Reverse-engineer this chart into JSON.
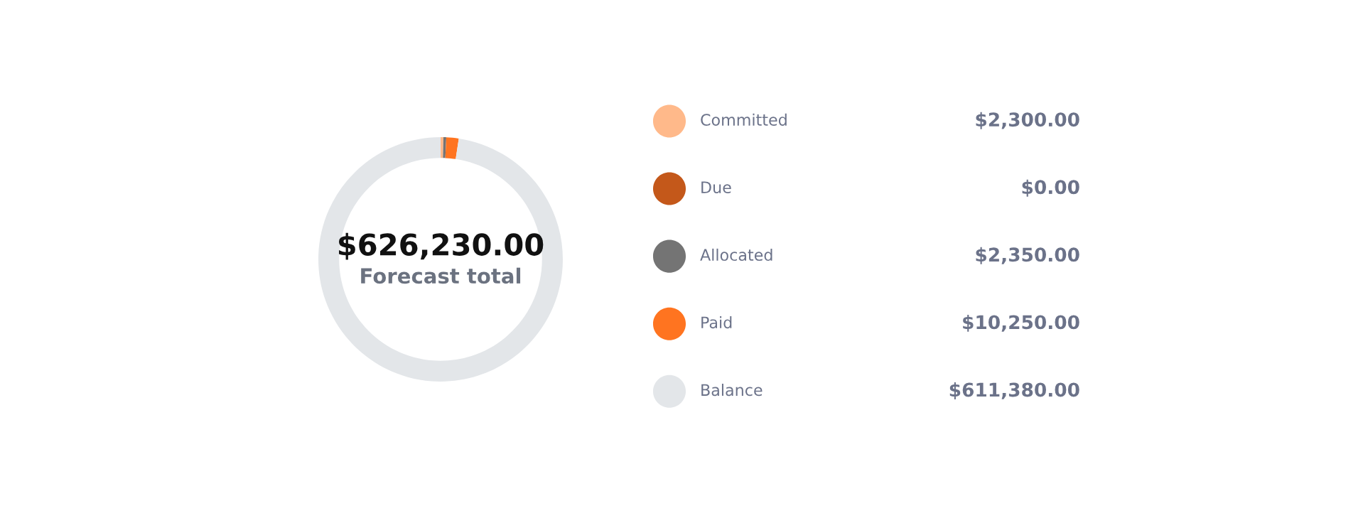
{
  "chart_data": {
    "type": "donut",
    "categories": [
      "Committed",
      "Due",
      "Allocated",
      "Paid",
      "Balance"
    ],
    "values": [
      2300,
      0,
      2350,
      10250,
      611380
    ],
    "value_labels": [
      "$2,300.00",
      "$0.00",
      "$2,350.00",
      "$10,250.00",
      "$611,380.00"
    ],
    "colors": [
      "#ffb98a",
      "#c4581a",
      "#747474",
      "#ff7420",
      "#e3e6e9"
    ],
    "annotations": [
      "$626,230.00",
      "Forecast total"
    ],
    "legend": "right"
  }
}
